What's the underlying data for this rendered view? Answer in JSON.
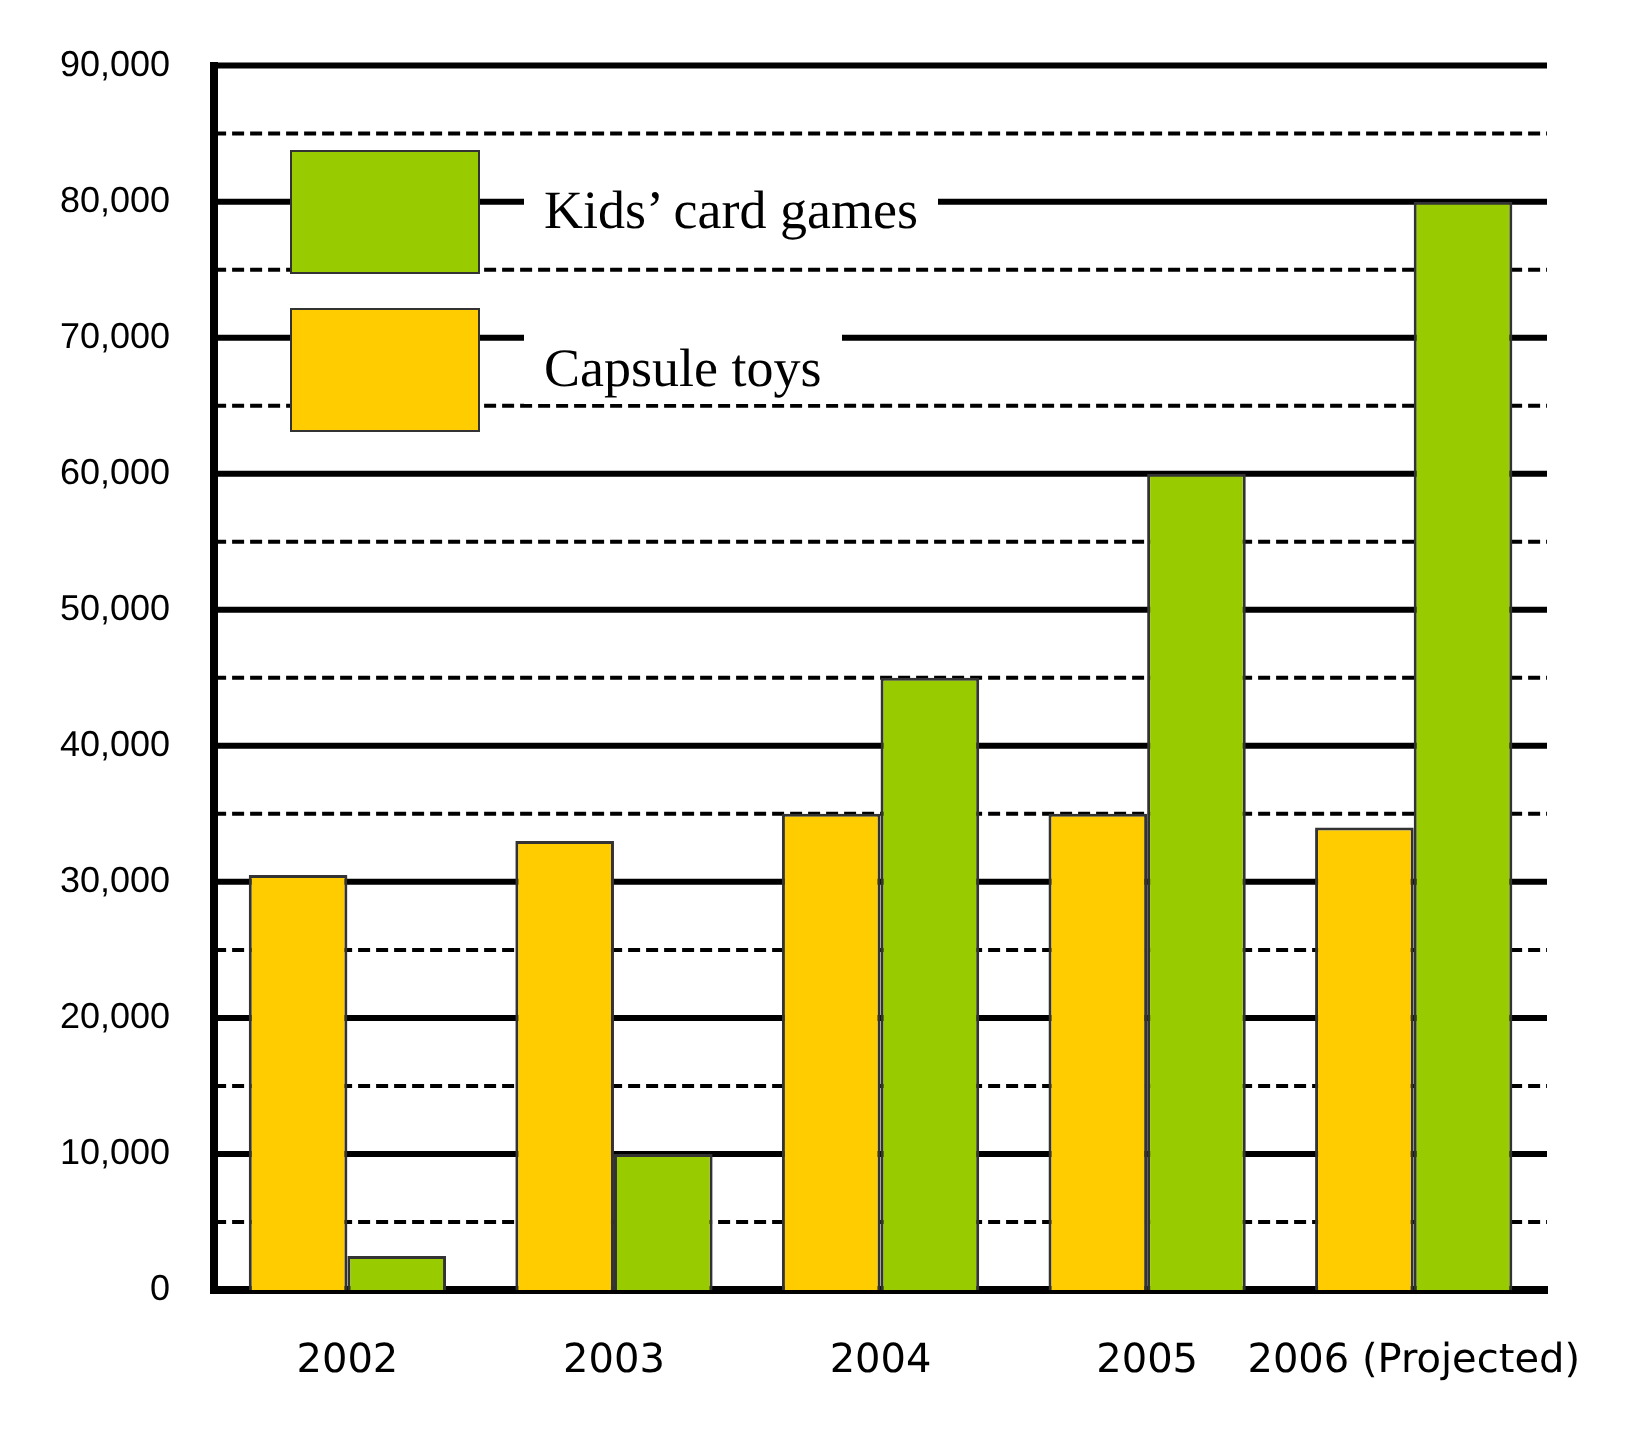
{
  "chart_data": {
    "type": "bar",
    "categories": [
      "2002",
      "2003",
      "2004",
      "2005",
      "2006 (Projected)"
    ],
    "series": [
      {
        "name": "Capsule toys",
        "color": "#ffcc00",
        "values": [
          30500,
          33000,
          35000,
          35000,
          34000
        ]
      },
      {
        "name": "Kids’ card games",
        "color": "#99cc00",
        "values": [
          2500,
          10000,
          45000,
          60000,
          80000
        ]
      }
    ],
    "ylim": [
      0,
      90000
    ],
    "yticks": [
      0,
      {
        "value": 5000,
        "label": null
      },
      {
        "value": 10000,
        "label": "10,000"
      },
      {
        "value": 15000,
        "label": null
      },
      {
        "value": 20000,
        "label": "20,000"
      },
      {
        "value": 25000,
        "label": null
      },
      {
        "value": 30000,
        "label": "30,000"
      },
      {
        "value": 35000,
        "label": null
      },
      {
        "value": 40000,
        "label": "40,000"
      },
      {
        "value": 45000,
        "label": null
      },
      {
        "value": 50000,
        "label": "50,000"
      },
      {
        "value": 55000,
        "label": null
      },
      {
        "value": 60000,
        "label": "60,000"
      },
      {
        "value": 65000,
        "label": null
      },
      {
        "value": 70000,
        "label": "70,000"
      },
      {
        "value": 75000,
        "label": null
      },
      {
        "value": 80000,
        "label": "80,000"
      },
      {
        "value": 85000,
        "label": null
      },
      {
        "value": 90000,
        "label": "90,000"
      }
    ],
    "grid": "y",
    "legend": "top left"
  }
}
